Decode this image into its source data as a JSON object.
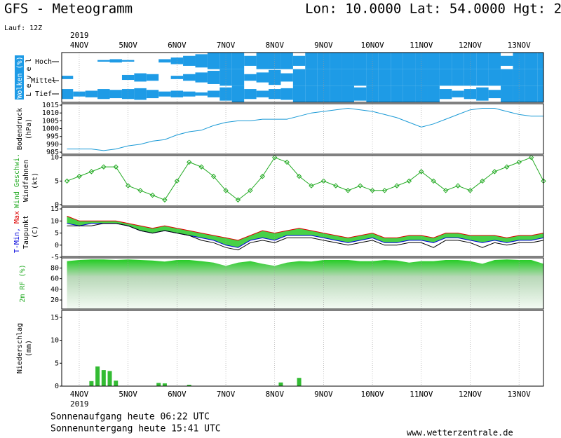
{
  "header": {
    "title": "GFS - Meteogramm",
    "location": "Lon: 10.0000 Lat: 54.0000 Hgt: 2",
    "run": "Lauf: 12Z"
  },
  "timeline": {
    "year": "2019",
    "xlim": [
      -8.6,
      228.0
    ],
    "xticks": [
      {
        "value": 0,
        "label": "4NOV"
      },
      {
        "value": 24,
        "label": "5NOV"
      },
      {
        "value": 48,
        "label": "6NOV"
      },
      {
        "value": 72,
        "label": "7NOV"
      },
      {
        "value": 96,
        "label": "8NOV"
      },
      {
        "value": 120,
        "label": "9NOV"
      },
      {
        "value": 144,
        "label": "10NOV"
      },
      {
        "value": 168,
        "label": "11NOV"
      },
      {
        "value": 192,
        "label": "12NOV"
      },
      {
        "value": 216,
        "label": "13NOV"
      }
    ],
    "x": [
      -6,
      0,
      6,
      12,
      18,
      24,
      30,
      36,
      42,
      48,
      54,
      60,
      66,
      72,
      78,
      84,
      90,
      96,
      102,
      108,
      114,
      120,
      126,
      132,
      138,
      144,
      150,
      156,
      162,
      168,
      174,
      180,
      186,
      192,
      198,
      204,
      210,
      216,
      222,
      228
    ]
  },
  "chart_data": [
    {
      "type": "cloud",
      "ylabel": [
        [
          {
            "text": "Wolken (%)",
            "color": "#ffffff"
          }
        ],
        [
          {
            "text": "L e v e l",
            "color": "#000000"
          }
        ]
      ],
      "background": "#1e9be6",
      "ylim": [
        0,
        100
      ],
      "series": [
        {
          "name": "Hoch",
          "color": "#1e9be6",
          "values": [
            0,
            0,
            0,
            10,
            20,
            10,
            0,
            0,
            20,
            40,
            60,
            80,
            100,
            100,
            100,
            60,
            100,
            100,
            100,
            60,
            100,
            100,
            100,
            100,
            100,
            100,
            100,
            100,
            100,
            100,
            100,
            100,
            100,
            100,
            100,
            100,
            60,
            100,
            100,
            100
          ]
        },
        {
          "name": "Mittel",
          "color": "#1e9be6",
          "values": [
            20,
            0,
            0,
            0,
            0,
            30,
            50,
            40,
            0,
            20,
            40,
            60,
            80,
            100,
            100,
            40,
            60,
            90,
            50,
            100,
            100,
            100,
            100,
            100,
            100,
            100,
            100,
            100,
            100,
            100,
            100,
            100,
            100,
            100,
            100,
            100,
            100,
            100,
            100,
            100
          ]
        },
        {
          "name": "Tief",
          "color": "#1e9be6",
          "values": [
            60,
            30,
            40,
            60,
            50,
            60,
            70,
            50,
            30,
            40,
            30,
            20,
            40,
            80,
            100,
            60,
            40,
            60,
            70,
            100,
            100,
            100,
            100,
            100,
            80,
            100,
            100,
            100,
            100,
            100,
            100,
            60,
            40,
            60,
            80,
            50,
            100,
            100,
            100,
            100
          ]
        }
      ]
    },
    {
      "type": "line",
      "ylabel": [
        [
          {
            "text": "Bodendruck",
            "color": "#000000"
          }
        ],
        [
          {
            "text": "(hPa)",
            "color": "#000000"
          }
        ]
      ],
      "ylim": [
        983.7,
        1015.9
      ],
      "yticks": [
        985,
        990,
        995,
        1000,
        1005,
        1010,
        1015
      ],
      "series": [
        {
          "color": "#1a9ad6",
          "values": [
            987,
            987,
            987,
            986,
            987,
            989,
            990,
            992,
            993,
            996,
            998,
            999,
            1002,
            1004,
            1005,
            1005,
            1006,
            1006,
            1006,
            1008,
            1010,
            1011,
            1012,
            1013,
            1012,
            1011,
            1009,
            1007,
            1004,
            1001,
            1003,
            1006,
            1009,
            1012,
            1013,
            1013,
            1011,
            1009,
            1008,
            1008
          ]
        }
      ]
    },
    {
      "type": "line",
      "markers": true,
      "ylabel": [
        [
          {
            "text": "Wind Geschwi.",
            "color": "#22aa22"
          }
        ],
        [
          {
            "text": "Windfahnen",
            "color": "#000000"
          }
        ],
        [
          {
            "text": "(kt)",
            "color": "#000000"
          }
        ]
      ],
      "ylim": [
        -0.3,
        10.4
      ],
      "yticks": [
        0,
        5,
        10
      ],
      "series": [
        {
          "color": "#22aa22",
          "values": [
            5,
            6,
            7,
            8,
            8,
            4,
            3,
            2,
            1,
            5,
            9,
            8,
            6,
            3,
            1,
            3,
            6,
            10,
            9,
            6,
            4,
            5,
            4,
            3,
            4,
            3,
            3,
            4,
            5,
            7,
            5,
            3,
            4,
            3,
            5,
            7,
            8,
            9,
            10,
            5
          ]
        }
      ]
    },
    {
      "type": "temperature",
      "ylabel": [
        [
          {
            "text": "T-Min,",
            "color": "#0000dd"
          },
          {
            "text": " Max",
            "color": "#dd0000"
          }
        ],
        [
          {
            "text": "Taupunkt",
            "color": "#000000"
          }
        ],
        [
          {
            "text": "(C)",
            "color": "#000000"
          }
        ]
      ],
      "ylim": [
        -4.7,
        15.6
      ],
      "yticks": [
        -5,
        0,
        5,
        10,
        15
      ],
      "fill": "#33cc33",
      "series": [
        {
          "name": "Max",
          "color": "#dd0000",
          "values": [
            12,
            10,
            10,
            10,
            10,
            9,
            8,
            7,
            8,
            7,
            6,
            5,
            4,
            3,
            2,
            4,
            6,
            5,
            6,
            7,
            6,
            5,
            4,
            3,
            4,
            5,
            3,
            3,
            4,
            4,
            3,
            5,
            5,
            4,
            4,
            4,
            3,
            4,
            4,
            5
          ]
        },
        {
          "name": "Min",
          "color": "#0000dd",
          "values": [
            9,
            8,
            9,
            9,
            9,
            8,
            6,
            5,
            6,
            5,
            4,
            3,
            2,
            0,
            -1,
            2,
            3,
            2,
            4,
            4,
            4,
            3,
            2,
            1,
            2,
            3,
            1,
            1,
            2,
            2,
            1,
            3,
            3,
            2,
            1,
            2,
            1,
            2,
            2,
            3
          ]
        },
        {
          "name": "Taupunkt",
          "color": "#000000",
          "values": [
            8,
            8,
            8,
            9,
            9,
            8,
            6,
            5,
            6,
            5,
            4,
            2,
            1,
            -1,
            -2,
            1,
            2,
            1,
            3,
            3,
            3,
            2,
            1,
            0,
            1,
            2,
            0,
            0,
            1,
            1,
            -1,
            2,
            2,
            1,
            -1,
            1,
            0,
            1,
            1,
            2
          ]
        }
      ]
    },
    {
      "type": "area",
      "ylabel": [
        [
          {
            "text": "2m RF (%)",
            "color": "#22aa22"
          }
        ]
      ],
      "ylim": [
        3,
        99
      ],
      "yticks": [
        20,
        40,
        60,
        80
      ],
      "series": [
        {
          "color": "#22cc22",
          "values": [
            93,
            95,
            96,
            96,
            95,
            96,
            95,
            94,
            92,
            95,
            95,
            93,
            90,
            84,
            90,
            93,
            88,
            84,
            90,
            93,
            92,
            95,
            95,
            95,
            93,
            93,
            95,
            94,
            90,
            93,
            93,
            95,
            95,
            93,
            88,
            95,
            96,
            95,
            95,
            88
          ]
        }
      ]
    },
    {
      "type": "bar",
      "ylabel": [
        [
          {
            "text": "Niederschlag",
            "color": "#000000"
          }
        ],
        [
          {
            "text": "(mm)",
            "color": "#000000"
          }
        ]
      ],
      "ylim": [
        0,
        16.5
      ],
      "yticks": [
        0,
        5,
        10,
        15
      ],
      "color": "#33bb33",
      "x": [
        6,
        9,
        12,
        15,
        18,
        39,
        42,
        54,
        99,
        108
      ],
      "values": [
        1.1,
        4.3,
        3.5,
        3.3,
        1.2,
        0.7,
        0.6,
        0.3,
        0.8,
        1.8
      ]
    }
  ],
  "footer": {
    "sunrise": "Sonnenaufgang heute 06:22 UTC",
    "sunset": "Sonnenuntergang heute 15:41 UTC",
    "source": "www.wetterzentrale.de"
  }
}
